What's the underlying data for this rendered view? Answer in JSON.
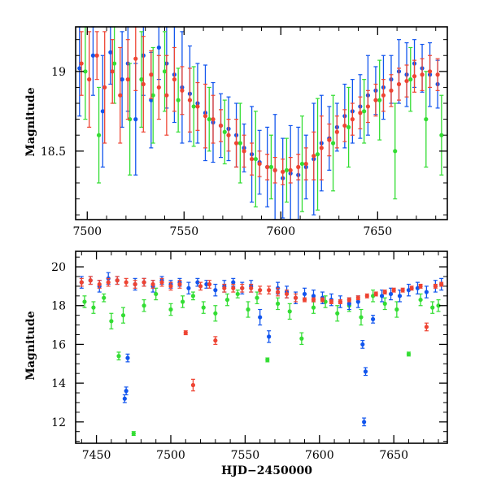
{
  "colors": {
    "red": "#ee4433",
    "green": "#33dd33",
    "blue": "#1155ee"
  },
  "chart_data": [
    {
      "type": "scatter",
      "panel": "top",
      "title": "",
      "xlabel": "",
      "ylabel": "Magnitude",
      "xlim": [
        7494,
        7686
      ],
      "ylim": [
        19.28,
        18.07
      ],
      "y_inverted": true,
      "x_ticks": [
        7500,
        7550,
        7600,
        7650
      ],
      "y_ticks": [
        18.5,
        19
      ],
      "series": [
        {
          "color": "blue",
          "x": [
            7496,
            7503,
            7508,
            7512,
            7518,
            7521,
            7525,
            7529,
            7533,
            7537,
            7541,
            7545,
            7549,
            7553,
            7557,
            7561,
            7565,
            7569,
            7573,
            7577,
            7581,
            7585,
            7589,
            7593,
            7597,
            7601,
            7605,
            7609,
            7613,
            7617,
            7621,
            7625,
            7629,
            7633,
            7637,
            7641,
            7645,
            7649,
            7653,
            7657,
            7661,
            7665,
            7669,
            7673,
            7677,
            7681
          ],
          "y": [
            19.02,
            19.1,
            18.75,
            19.12,
            18.95,
            19.05,
            18.7,
            19.1,
            18.82,
            19.15,
            19.05,
            18.98,
            18.9,
            18.86,
            18.8,
            18.74,
            18.68,
            18.66,
            18.64,
            18.6,
            18.52,
            18.48,
            18.43,
            18.4,
            18.38,
            18.33,
            18.36,
            18.35,
            18.4,
            18.45,
            18.55,
            18.58,
            18.65,
            18.72,
            18.75,
            18.78,
            18.85,
            18.88,
            18.9,
            18.95,
            19.0,
            18.98,
            19.05,
            19.02,
            18.98,
            18.92
          ],
          "err": [
            0.3,
            0.25,
            0.35,
            0.2,
            0.3,
            0.3,
            0.35,
            0.25,
            0.3,
            0.2,
            0.28,
            0.3,
            0.35,
            0.3,
            0.25,
            0.3,
            0.25,
            0.2,
            0.2,
            0.2,
            0.15,
            0.3,
            0.2,
            0.25,
            0.35,
            0.25,
            0.3,
            0.3,
            0.2,
            0.35,
            0.3,
            0.2,
            0.15,
            0.2,
            0.2,
            0.2,
            0.25,
            0.15,
            0.2,
            0.15,
            0.2,
            0.2,
            0.15,
            0.15,
            0.2,
            0.15
          ]
        },
        {
          "color": "green",
          "x": [
            7499,
            7506,
            7514,
            7522,
            7528,
            7534,
            7540,
            7547,
            7555,
            7563,
            7571,
            7579,
            7587,
            7595,
            7603,
            7611,
            7619,
            7627,
            7635,
            7643,
            7651,
            7659,
            7667,
            7675,
            7683
          ],
          "y": [
            19.0,
            18.6,
            19.05,
            18.7,
            18.95,
            18.85,
            19.0,
            18.82,
            18.78,
            18.7,
            18.62,
            18.55,
            18.45,
            18.4,
            18.38,
            18.42,
            18.48,
            18.55,
            18.65,
            18.75,
            18.82,
            18.5,
            18.95,
            18.7,
            18.6
          ],
          "err": [
            0.3,
            0.3,
            0.25,
            0.35,
            0.3,
            0.3,
            0.25,
            0.2,
            0.25,
            0.2,
            0.2,
            0.25,
            0.3,
            0.2,
            0.2,
            0.3,
            0.35,
            0.3,
            0.25,
            0.2,
            0.25,
            0.3,
            0.2,
            0.3,
            0.25
          ]
        },
        {
          "color": "red",
          "x": [
            7497,
            7501,
            7505,
            7509,
            7513,
            7517,
            7521,
            7525,
            7529,
            7533,
            7537,
            7541,
            7545,
            7549,
            7553,
            7557,
            7561,
            7565,
            7569,
            7573,
            7577,
            7581,
            7585,
            7589,
            7593,
            7597,
            7601,
            7605,
            7609,
            7613,
            7617,
            7621,
            7625,
            7629,
            7633,
            7637,
            7641,
            7645,
            7649,
            7653,
            7657,
            7661,
            7665,
            7669,
            7673,
            7677,
            7681
          ],
          "y": [
            19.05,
            18.95,
            19.1,
            18.9,
            19.0,
            18.85,
            18.95,
            19.08,
            18.92,
            18.98,
            18.9,
            18.85,
            18.95,
            18.88,
            18.82,
            18.78,
            18.72,
            18.7,
            18.66,
            18.6,
            18.55,
            18.5,
            18.45,
            18.42,
            18.4,
            18.38,
            18.37,
            18.38,
            18.4,
            18.42,
            18.47,
            18.52,
            18.57,
            18.62,
            18.66,
            18.7,
            18.74,
            18.78,
            18.82,
            18.85,
            18.88,
            18.92,
            18.94,
            18.97,
            18.98,
            19.0,
            18.98
          ],
          "err": [
            0.2,
            0.3,
            0.15,
            0.35,
            0.2,
            0.3,
            0.25,
            0.2,
            0.3,
            0.15,
            0.2,
            0.25,
            0.2,
            0.15,
            0.2,
            0.15,
            0.2,
            0.15,
            0.1,
            0.1,
            0.15,
            0.1,
            0.1,
            0.08,
            0.08,
            0.08,
            0.08,
            0.08,
            0.08,
            0.1,
            0.15,
            0.2,
            0.1,
            0.1,
            0.1,
            0.1,
            0.1,
            0.1,
            0.1,
            0.1,
            0.1,
            0.1,
            0.1,
            0.1,
            0.1,
            0.1,
            0.1
          ]
        }
      ]
    },
    {
      "type": "scatter",
      "panel": "bottom",
      "title": "",
      "xlabel": "HJD−2450000",
      "ylabel": "Magnitude",
      "xlim": [
        7436,
        7686
      ],
      "ylim": [
        20.8,
        10.9
      ],
      "y_inverted": true,
      "x_ticks": [
        7450,
        7500,
        7550,
        7600,
        7650
      ],
      "y_ticks": [
        12,
        14,
        16,
        18,
        20
      ],
      "series": [
        {
          "color": "green",
          "x": [
            7442,
            7448,
            7455,
            7460,
            7465,
            7468,
            7475,
            7482,
            7490,
            7500,
            7508,
            7515,
            7522,
            7530,
            7538,
            7545,
            7552,
            7558,
            7565,
            7572,
            7580,
            7588,
            7596,
            7604,
            7612,
            7620,
            7628,
            7636,
            7644,
            7652,
            7660,
            7668,
            7676,
            7680
          ],
          "y": [
            18.2,
            17.9,
            18.4,
            17.2,
            15.4,
            17.5,
            11.4,
            18.0,
            18.6,
            17.8,
            18.2,
            18.5,
            17.9,
            17.6,
            18.3,
            18.6,
            17.8,
            18.4,
            15.2,
            18.1,
            17.7,
            16.3,
            17.9,
            18.2,
            17.6,
            18.0,
            17.4,
            18.5,
            18.1,
            17.8,
            15.5,
            18.3,
            17.9,
            18.0
          ],
          "err": [
            0.3,
            0.3,
            0.2,
            0.4,
            0.2,
            0.4,
            0.1,
            0.3,
            0.3,
            0.3,
            0.3,
            0.2,
            0.3,
            0.4,
            0.3,
            0.2,
            0.4,
            0.3,
            0.1,
            0.3,
            0.4,
            0.3,
            0.3,
            0.3,
            0.4,
            0.3,
            0.4,
            0.3,
            0.3,
            0.4,
            0.1,
            0.3,
            0.3,
            0.3
          ]
        },
        {
          "color": "blue",
          "x": [
            7440,
            7446,
            7452,
            7458,
            7464,
            7469,
            7470,
            7471,
            7476,
            7482,
            7488,
            7494,
            7500,
            7506,
            7512,
            7518,
            7524,
            7530,
            7536,
            7542,
            7548,
            7554,
            7560,
            7566,
            7572,
            7578,
            7584,
            7590,
            7596,
            7602,
            7608,
            7614,
            7620,
            7626,
            7629,
            7630,
            7631,
            7636,
            7642,
            7648,
            7654,
            7660,
            7666,
            7672,
            7678,
            7682
          ],
          "y": [
            19.2,
            19.3,
            19.0,
            19.4,
            19.3,
            13.2,
            13.6,
            15.3,
            19.1,
            19.2,
            19.0,
            19.3,
            19.1,
            19.2,
            18.9,
            19.2,
            19.1,
            18.8,
            19.0,
            19.2,
            18.9,
            19.0,
            17.4,
            16.4,
            18.9,
            18.7,
            18.4,
            18.6,
            18.5,
            18.4,
            18.3,
            18.2,
            18.1,
            18.2,
            16.0,
            12.0,
            14.6,
            17.3,
            18.5,
            18.6,
            18.5,
            18.8,
            18.9,
            18.7,
            19.0,
            19.1
          ],
          "err": [
            0.3,
            0.2,
            0.3,
            0.3,
            0.2,
            0.2,
            0.2,
            0.2,
            0.3,
            0.2,
            0.3,
            0.2,
            0.2,
            0.2,
            0.3,
            0.2,
            0.2,
            0.3,
            0.3,
            0.2,
            0.3,
            0.3,
            0.4,
            0.3,
            0.3,
            0.3,
            0.3,
            0.3,
            0.3,
            0.3,
            0.3,
            0.3,
            0.3,
            0.3,
            0.2,
            0.2,
            0.2,
            0.2,
            0.3,
            0.3,
            0.3,
            0.3,
            0.3,
            0.3,
            0.3,
            0.3
          ]
        },
        {
          "color": "red",
          "x": [
            7440,
            7446,
            7452,
            7458,
            7464,
            7470,
            7476,
            7482,
            7488,
            7494,
            7500,
            7506,
            7510,
            7515,
            7520,
            7526,
            7530,
            7536,
            7542,
            7548,
            7554,
            7560,
            7566,
            7572,
            7578,
            7584,
            7590,
            7596,
            7602,
            7608,
            7614,
            7620,
            7626,
            7632,
            7638,
            7644,
            7650,
            7656,
            7662,
            7668,
            7672,
            7678,
            7682
          ],
          "y": [
            19.2,
            19.3,
            19.1,
            19.2,
            19.3,
            19.2,
            19.1,
            19.2,
            19.1,
            19.2,
            19.0,
            19.1,
            16.6,
            13.9,
            19.0,
            19.1,
            16.2,
            18.9,
            18.9,
            18.9,
            18.9,
            18.8,
            18.8,
            18.7,
            18.6,
            18.4,
            18.3,
            18.3,
            18.3,
            18.2,
            18.2,
            18.3,
            18.4,
            18.5,
            18.6,
            18.7,
            18.8,
            18.8,
            18.9,
            19.0,
            16.9,
            19.0,
            19.1
          ],
          "err": [
            0.2,
            0.2,
            0.2,
            0.2,
            0.2,
            0.2,
            0.2,
            0.2,
            0.2,
            0.2,
            0.2,
            0.2,
            0.1,
            0.3,
            0.2,
            0.2,
            0.2,
            0.2,
            0.2,
            0.2,
            0.2,
            0.2,
            0.2,
            0.2,
            0.2,
            0.2,
            0.1,
            0.1,
            0.1,
            0.1,
            0.1,
            0.1,
            0.1,
            0.1,
            0.1,
            0.1,
            0.1,
            0.1,
            0.1,
            0.1,
            0.2,
            0.1,
            0.1
          ]
        }
      ]
    }
  ]
}
